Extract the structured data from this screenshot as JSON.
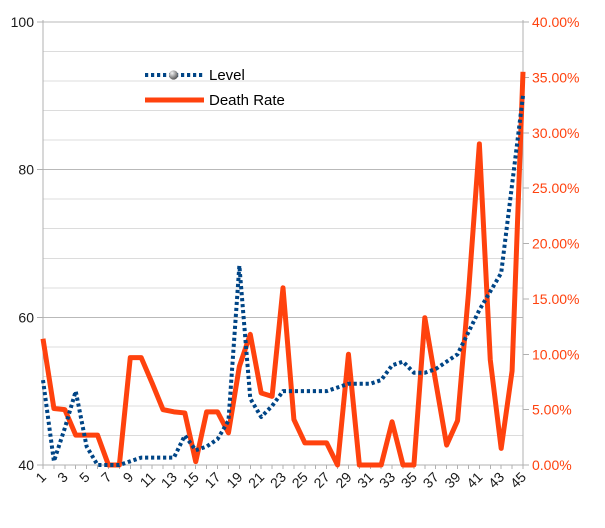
{
  "chart_data": {
    "type": "line",
    "title": "",
    "x": [
      1,
      2,
      3,
      4,
      5,
      6,
      7,
      8,
      9,
      10,
      11,
      12,
      13,
      14,
      15,
      16,
      17,
      18,
      19,
      20,
      21,
      22,
      23,
      24,
      25,
      26,
      27,
      28,
      29,
      30,
      31,
      32,
      33,
      34,
      35,
      36,
      37,
      38,
      39,
      40,
      41,
      42,
      43,
      44,
      45
    ],
    "x_tick_labels": [
      "1",
      "3",
      "5",
      "7",
      "9",
      "11",
      "13",
      "15",
      "17",
      "19",
      "21",
      "23",
      "25",
      "27",
      "29",
      "31",
      "33",
      "35",
      "37",
      "39",
      "41",
      "43",
      "45"
    ],
    "series": [
      {
        "name": "Level",
        "axis": "left",
        "color": "#004586",
        "style": "dotted",
        "marker": "gray-sphere",
        "values": [
          51.5,
          40.5,
          45,
          50,
          42.5,
          40,
          40,
          40,
          40.5,
          41,
          41,
          41,
          41,
          44,
          42,
          42.5,
          43.5,
          46,
          67,
          49,
          46.5,
          48,
          50,
          50,
          50,
          50,
          50,
          50.5,
          51,
          51,
          51,
          51.5,
          53.5,
          54,
          52.5,
          52.5,
          53,
          54,
          55,
          58,
          61,
          63.5,
          66,
          78,
          90
        ]
      },
      {
        "name": "Death Rate",
        "axis": "right",
        "color": "#FF420E",
        "style": "solid",
        "values": [
          11.4,
          5.1,
          5,
          2.7,
          2.7,
          2.7,
          0,
          0,
          9.7,
          9.7,
          7.4,
          5,
          4.8,
          4.7,
          0.3,
          4.8,
          4.8,
          2.9,
          8.9,
          11.8,
          6.5,
          6.2,
          16,
          4.1,
          2,
          2,
          2,
          0,
          10,
          0,
          0,
          0,
          3.9,
          0,
          0,
          13.3,
          7.5,
          1.8,
          4,
          15.5,
          29,
          9.5,
          1.5,
          8.5,
          35.5
        ]
      }
    ],
    "left_axis": {
      "min": 40,
      "max": 100,
      "tick_values": [
        40,
        60,
        80,
        100
      ],
      "tick_labels": [
        "40",
        "60",
        "80",
        "100"
      ],
      "minor_grid_step": 4,
      "label_color": "#1a1a1a"
    },
    "right_axis": {
      "min": 0,
      "max": 40,
      "tick_values": [
        0,
        5,
        10,
        15,
        20,
        25,
        30,
        35,
        40
      ],
      "tick_labels": [
        "0.00%",
        "5.00%",
        "10.00%",
        "15.00%",
        "20.00%",
        "25.00%",
        "30.00%",
        "35.00%",
        "40.00%"
      ],
      "label_color": "#FF420E"
    },
    "grid": {
      "major_color": "#b9b9b9",
      "minor_color": "#dcdcdc",
      "axis_color": "#b0b0b0"
    },
    "legend_position": "top-center"
  },
  "legend": {
    "level_label": "Level",
    "death_rate_label": "Death Rate"
  }
}
